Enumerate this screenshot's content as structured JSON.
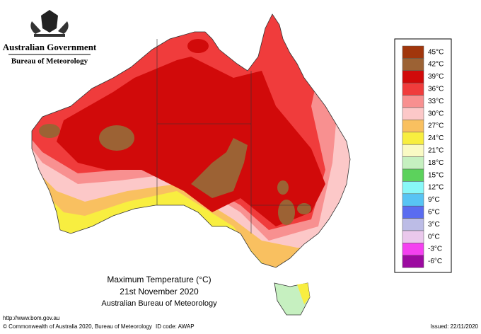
{
  "header": {
    "government": "Australian Government",
    "agency": "Bureau of Meteorology"
  },
  "map": {
    "title": "Maximum Temperature (°C)",
    "date": "21st November 2020",
    "source": "Australian Bureau of Meteorology"
  },
  "legend": [
    {
      "label": "45°C",
      "color": "#a1360c"
    },
    {
      "label": "42°C",
      "color": "#9c6234"
    },
    {
      "label": "39°C",
      "color": "#d10a0a"
    },
    {
      "label": "36°C",
      "color": "#f03c3c"
    },
    {
      "label": "33°C",
      "color": "#f89090"
    },
    {
      "label": "30°C",
      "color": "#fcc8c8"
    },
    {
      "label": "27°C",
      "color": "#f9c060"
    },
    {
      "label": "24°C",
      "color": "#f8ee40"
    },
    {
      "label": "21°C",
      "color": "#fafac4"
    },
    {
      "label": "18°C",
      "color": "#c6f0c0"
    },
    {
      "label": "15°C",
      "color": "#5cd25c"
    },
    {
      "label": "12°C",
      "color": "#88f8f8"
    },
    {
      "label": "9°C",
      "color": "#58c4f4"
    },
    {
      "label": "6°C",
      "color": "#5a6cf0"
    },
    {
      "label": "3°C",
      "color": "#bcbce6"
    },
    {
      "label": "0°C",
      "color": "#eac8ec"
    },
    {
      "label": "-3°C",
      "color": "#f440f0"
    },
    {
      "label": "-6°C",
      "color": "#9c0aa0"
    }
  ],
  "footer": {
    "url": "http://www.bom.gov.au",
    "copyright": "© Commonwealth of Australia 2020, Bureau of Meteorology",
    "id_code": "ID code: AWAP",
    "issued": "Issued: 22/11/2020"
  }
}
